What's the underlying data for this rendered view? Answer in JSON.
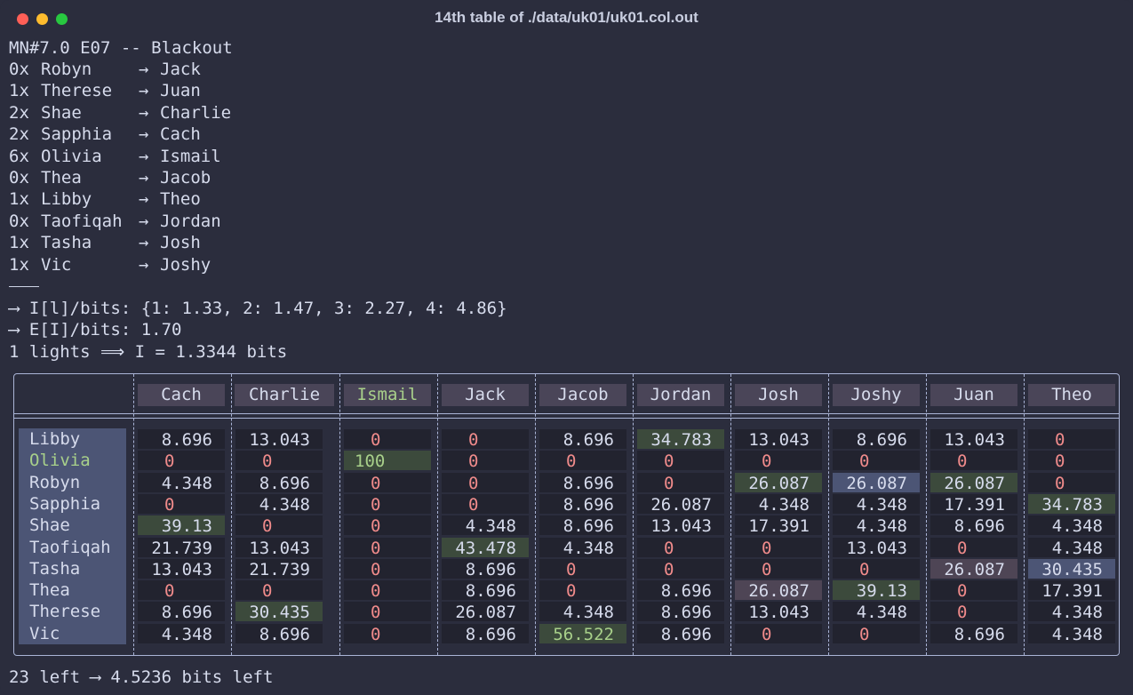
{
  "window": {
    "title": "14th table of ./data/uk01/uk01.col.out"
  },
  "header_line": "MN#7.0 E07 -- Blackout",
  "matches": [
    {
      "count": "0x",
      "name": "Robyn",
      "arrow": "→",
      "target": "Jack"
    },
    {
      "count": "1x",
      "name": "Therese",
      "arrow": "→",
      "target": "Juan"
    },
    {
      "count": "2x",
      "name": "Shae",
      "arrow": "→",
      "target": "Charlie"
    },
    {
      "count": "2x",
      "name": "Sapphia",
      "arrow": "→",
      "target": "Cach"
    },
    {
      "count": "6x",
      "name": "Olivia",
      "arrow": "→",
      "target": "Ismail"
    },
    {
      "count": "0x",
      "name": "Thea",
      "arrow": "→",
      "target": "Jacob"
    },
    {
      "count": "1x",
      "name": "Libby",
      "arrow": "→",
      "target": "Theo"
    },
    {
      "count": "0x",
      "name": "Taofiqah",
      "arrow": "→",
      "target": "Jordan"
    },
    {
      "count": "1x",
      "name": "Tasha",
      "arrow": "→",
      "target": "Josh"
    },
    {
      "count": "1x",
      "name": "Vic",
      "arrow": "→",
      "target": "Joshy"
    }
  ],
  "info": {
    "il_bits": "⟶ I[l]/bits: {1: 1.33, 2: 1.47, 3: 2.27, 4: 4.86}",
    "ei_bits": "⟶ E[I]/bits: 1.70",
    "lights": "1 lights ⟹ I = 1.3344 bits"
  },
  "table": {
    "columns": [
      "Cach",
      "Charlie",
      "Ismail",
      "Jack",
      "Jacob",
      "Jordan",
      "Josh",
      "Joshy",
      "Juan",
      "Theo"
    ],
    "selected_column": "Ismail",
    "selected_row": "Olivia",
    "rows": [
      {
        "name": "Libby",
        "cells": [
          "8.696",
          "13.043",
          "0",
          "0",
          "8.696",
          "34.783",
          "13.043",
          "8.696",
          "13.043",
          "0"
        ]
      },
      {
        "name": "Olivia",
        "cells": [
          "0",
          "0",
          "100",
          "0",
          "0",
          "0",
          "0",
          "0",
          "0",
          "0"
        ]
      },
      {
        "name": "Robyn",
        "cells": [
          "4.348",
          "8.696",
          "0",
          "0",
          "8.696",
          "0",
          "26.087",
          "26.087",
          "26.087",
          "0"
        ]
      },
      {
        "name": "Sapphia",
        "cells": [
          "0",
          "4.348",
          "0",
          "0",
          "8.696",
          "26.087",
          "4.348",
          "4.348",
          "17.391",
          "34.783"
        ]
      },
      {
        "name": "Shae",
        "cells": [
          "39.13",
          "0",
          "0",
          "4.348",
          "8.696",
          "13.043",
          "17.391",
          "4.348",
          "8.696",
          "4.348"
        ]
      },
      {
        "name": "Taofiqah",
        "cells": [
          "21.739",
          "13.043",
          "0",
          "43.478",
          "4.348",
          "0",
          "0",
          "13.043",
          "0",
          "4.348"
        ]
      },
      {
        "name": "Tasha",
        "cells": [
          "13.043",
          "21.739",
          "0",
          "8.696",
          "0",
          "0",
          "0",
          "0",
          "26.087",
          "30.435"
        ]
      },
      {
        "name": "Thea",
        "cells": [
          "0",
          "0",
          "0",
          "8.696",
          "0",
          "8.696",
          "26.087",
          "39.13",
          "0",
          "17.391"
        ]
      },
      {
        "name": "Therese",
        "cells": [
          "8.696",
          "30.435",
          "0",
          "26.087",
          "4.348",
          "8.696",
          "13.043",
          "4.348",
          "0",
          "4.348"
        ]
      },
      {
        "name": "Vic",
        "cells": [
          "4.348",
          "8.696",
          "0",
          "8.696",
          "56.522",
          "8.696",
          "0",
          "0",
          "8.696",
          "4.348"
        ]
      }
    ],
    "highlights": {
      "Libby": {
        "5": "green"
      },
      "Olivia": {
        "2": "green"
      },
      "Robyn": {
        "6": "green",
        "7": "blue",
        "8": "green"
      },
      "Sapphia": {
        "9": "green"
      },
      "Shae": {
        "0": "green"
      },
      "Taofiqah": {
        "3": "green"
      },
      "Tasha": {
        "8": "purple",
        "9": "blue"
      },
      "Thea": {
        "6": "purple",
        "7": "green"
      },
      "Therese": {
        "1": "green"
      },
      "Vic": {
        "4": "green-text"
      }
    },
    "colors": {
      "green": "#3c4a3c",
      "blue": "#4c5575",
      "purple": "#4e4555",
      "zero": "#f08b8b",
      "accent": "#a8d08a"
    }
  },
  "footer": "23 left ⟶ 4.5236 bits left"
}
